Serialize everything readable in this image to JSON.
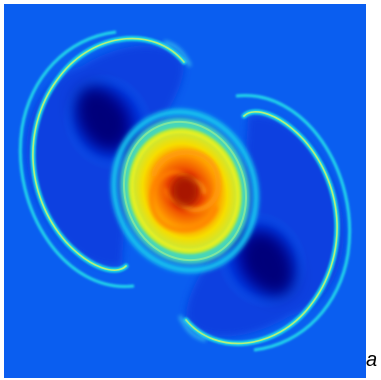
{
  "figure": {
    "panel_label": "a",
    "colormap": "jet",
    "colors": {
      "background": "#0a5ef0",
      "deep_blue": "#00007f",
      "cyan": "#1ee6e6",
      "yellow": "#f5f000",
      "orange": "#ff8a00",
      "red": "#d62000"
    },
    "features": [
      "upper-left-vortex",
      "lower-right-vortex",
      "central-core",
      "spiral-rings"
    ]
  }
}
